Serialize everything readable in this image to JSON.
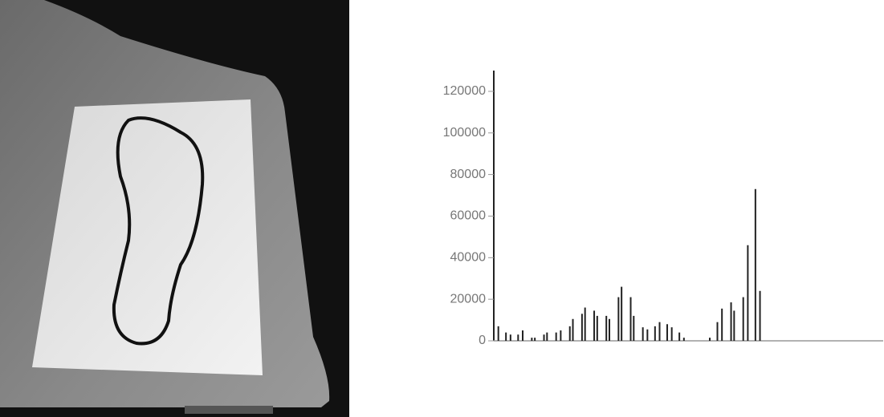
{
  "chart_data": {
    "type": "bar",
    "x": [
      3,
      8,
      11,
      16,
      19,
      25,
      27,
      33,
      35,
      41,
      44,
      50,
      52,
      58,
      60,
      66,
      68,
      74,
      76,
      82,
      84,
      90,
      92,
      98,
      101,
      106,
      109,
      114,
      117,
      122,
      125,
      142,
      147,
      150,
      156,
      158,
      164,
      167,
      172,
      175
    ],
    "values": [
      7000,
      4000,
      3000,
      3000,
      5000,
      1500,
      1500,
      3000,
      4000,
      4000,
      5000,
      7000,
      10500,
      13000,
      16000,
      14500,
      12000,
      12000,
      10500,
      21000,
      26000,
      21000,
      12000,
      6500,
      5500,
      7000,
      9000,
      8000,
      6500,
      4000,
      1500,
      1500,
      9000,
      15500,
      18500,
      14500,
      21000,
      46000,
      73000,
      24000
    ],
    "color": "#222222",
    "xlim": [
      0,
      256
    ],
    "ylim": [
      0,
      130000
    ],
    "yticks": [
      0,
      20000,
      40000,
      60000,
      80000,
      100000,
      120000
    ]
  }
}
